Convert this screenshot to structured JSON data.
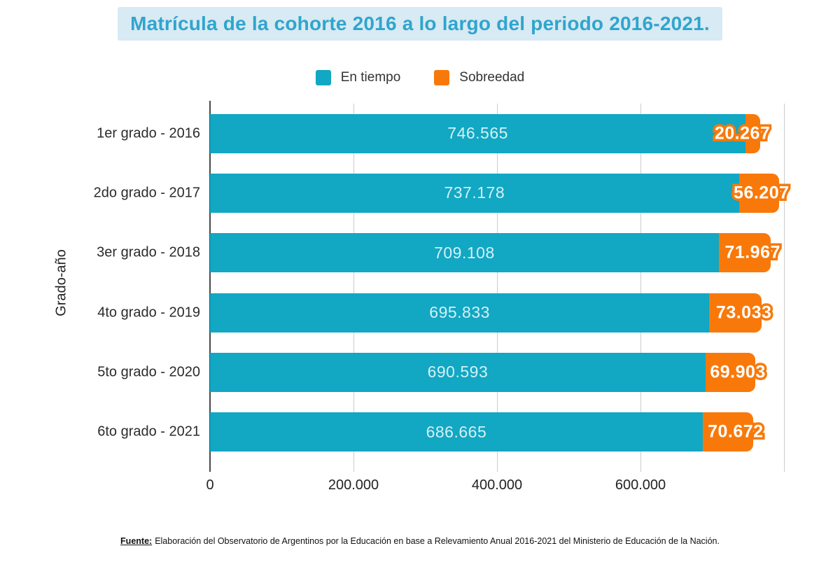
{
  "title": "Matrícula de la cohorte 2016 a lo largo del periodo 2016-2021.",
  "footer": {
    "source_label": "Fuente:",
    "source_text": "Elaboración del Observatorio de Argentinos por la Educación en base a Relevamiento Anual 2016-2021 del Ministerio de Educación de la Nación."
  },
  "colors": {
    "title_text": "#2fa5ce",
    "title_background": "#d8eaf3",
    "en_tiempo": "#12a7c3",
    "sobreedad": "#f8790a",
    "gridline": "#cccccc",
    "axis_line": "#4a4a4a",
    "bar_value_teal_text": "#d4f1f6",
    "bar_value_orange_text": "#ffffff"
  },
  "chart_data": {
    "type": "bar",
    "orientation": "horizontal",
    "stacked": true,
    "title": "Matrícula de la cohorte 2016 a lo largo del periodo 2016-2021.",
    "xlabel": "",
    "ylabel": "Grado-año",
    "legend_position": "top",
    "grid": true,
    "xlim": [
      0,
      800000
    ],
    "categories": [
      "1er grado - 2016",
      "2do grado - 2017",
      "3er grado - 2018",
      "4to grado - 2019",
      "5to grado - 2020",
      "6to grado - 2021"
    ],
    "series": [
      {
        "name": "En tiempo",
        "color": "#12a7c3",
        "values": [
          746565,
          737178,
          709108,
          695833,
          690593,
          686665
        ],
        "labels": [
          "746.565",
          "737.178",
          "709.108",
          "695.833",
          "690.593",
          "686.665"
        ]
      },
      {
        "name": "Sobreedad",
        "color": "#f8790a",
        "values": [
          20267,
          56207,
          71967,
          73033,
          69903,
          70672
        ],
        "labels": [
          "20.267",
          "56.207",
          "71.967",
          "73.033",
          "69.903",
          "70.672"
        ]
      }
    ],
    "x_ticks": [
      {
        "value": 0,
        "label": "0"
      },
      {
        "value": 200000,
        "label": "200.000"
      },
      {
        "value": 400000,
        "label": "400.000"
      },
      {
        "value": 600000,
        "label": "600.000"
      },
      {
        "value": 800000,
        "label": ""
      }
    ]
  }
}
